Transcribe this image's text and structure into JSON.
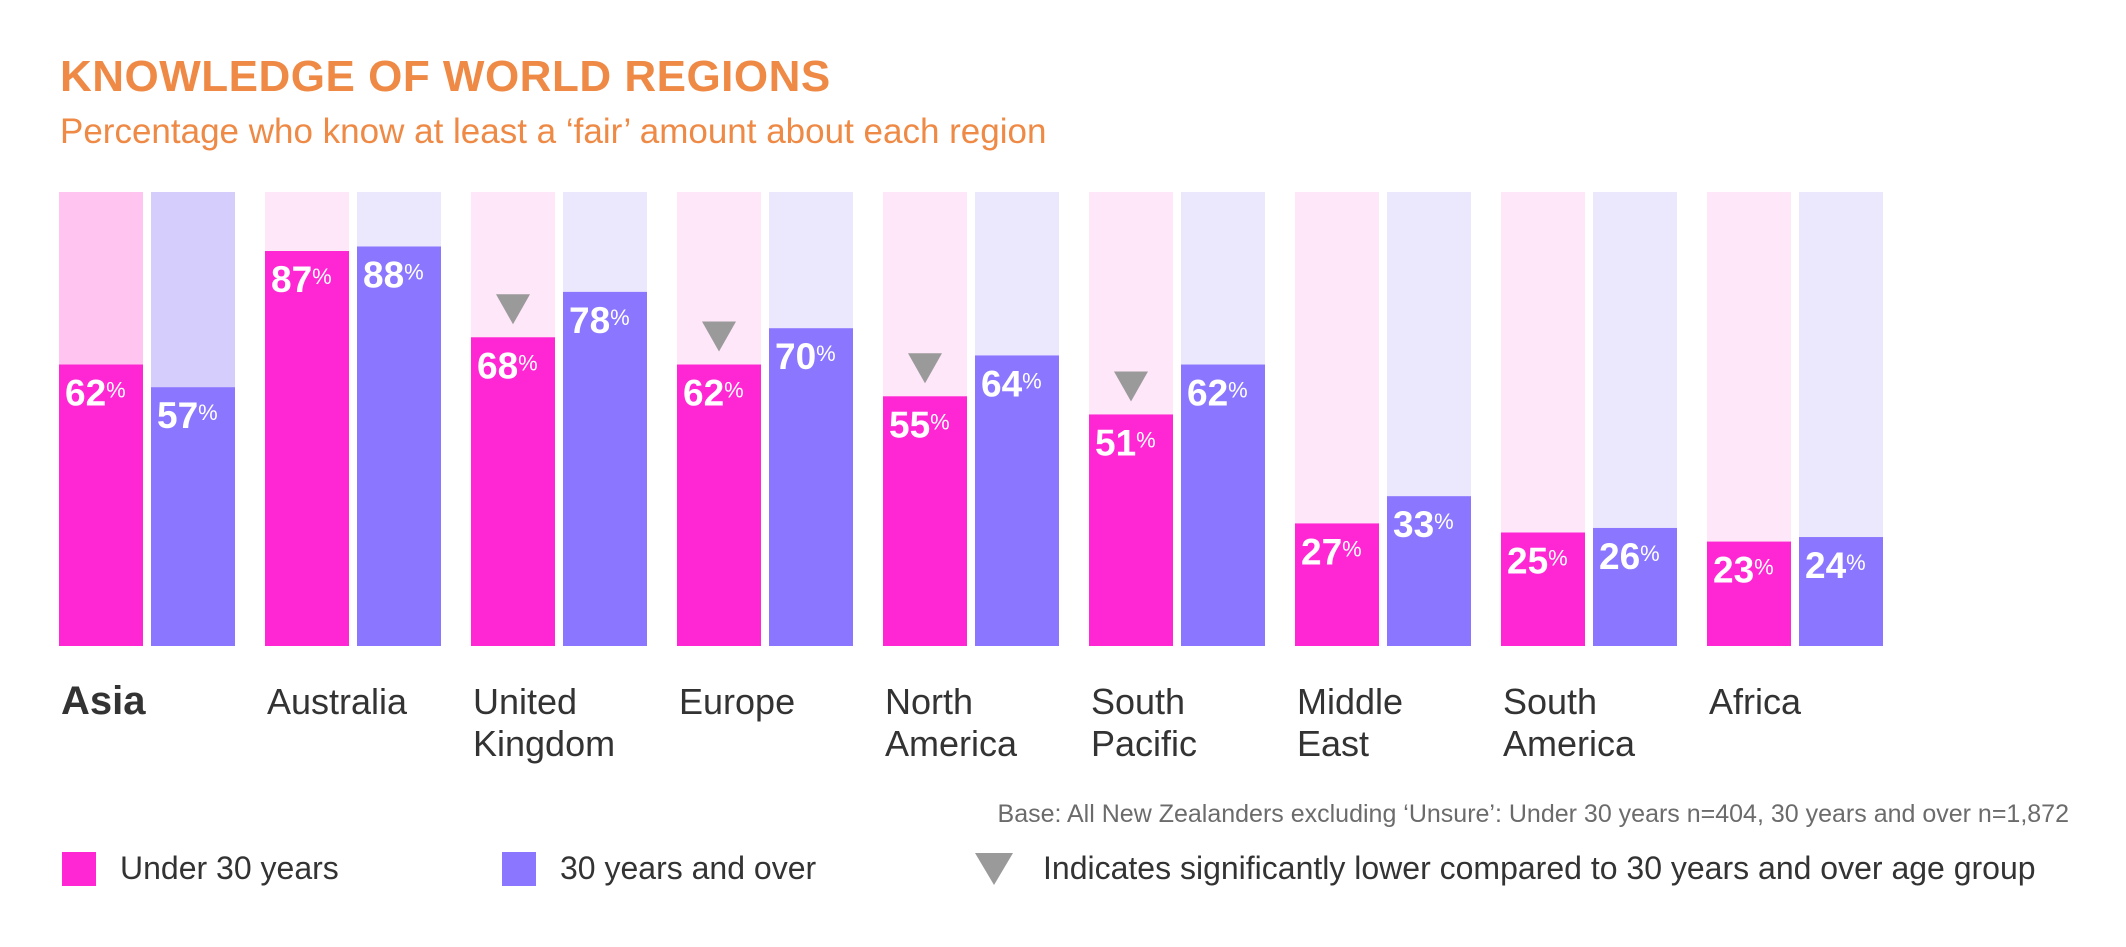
{
  "chart_data": {
    "type": "bar",
    "title": "KNOWLEDGE OF WORLD REGIONS",
    "subtitle": "Percentage who know at least a ‘fair’ amount about each region",
    "categories": [
      "Asia",
      "Australia",
      "United Kingdom",
      "Europe",
      "North America",
      "South Pacific",
      "Middle East",
      "South America",
      "Africa"
    ],
    "category_lines": [
      [
        "Asia"
      ],
      [
        "Australia"
      ],
      [
        "United",
        "Kingdom"
      ],
      [
        "Europe"
      ],
      [
        "North",
        "America"
      ],
      [
        "South",
        "Pacific"
      ],
      [
        "Middle",
        "East"
      ],
      [
        "South",
        "America"
      ],
      [
        "Africa"
      ]
    ],
    "highlight_category": "Asia",
    "series": [
      {
        "name": "Under 30 years",
        "color": "#FF26D3",
        "track_color": "#FEE7F8",
        "values": [
          62,
          87,
          68,
          62,
          55,
          51,
          27,
          25,
          23
        ]
      },
      {
        "name": "30 years and over",
        "color": "#8B77FF",
        "track_color": "#EBE8FE",
        "values": [
          57,
          88,
          78,
          70,
          64,
          62,
          33,
          26,
          24
        ]
      }
    ],
    "highlight_track_colors": [
      "#FFC4EF",
      "#D5CEFD"
    ],
    "significantly_lower": [
      false,
      false,
      true,
      true,
      true,
      true,
      false,
      false,
      false
    ],
    "value_suffix": "%",
    "ylim": [
      0,
      100
    ],
    "legend": {
      "under30": "Under 30 years",
      "over30": "30 years and over",
      "marker": "Indicates significantly lower compared to 30 years and over age group"
    },
    "base_note": "Base: All New Zealanders excluding ‘Unsure’: Under 30 years n=404, 30 years and over n=1,872"
  },
  "colors": {
    "title": "#EE8A45",
    "under30": "#FF26D3",
    "over30": "#8B77FF",
    "marker": "#9a9a9a"
  }
}
